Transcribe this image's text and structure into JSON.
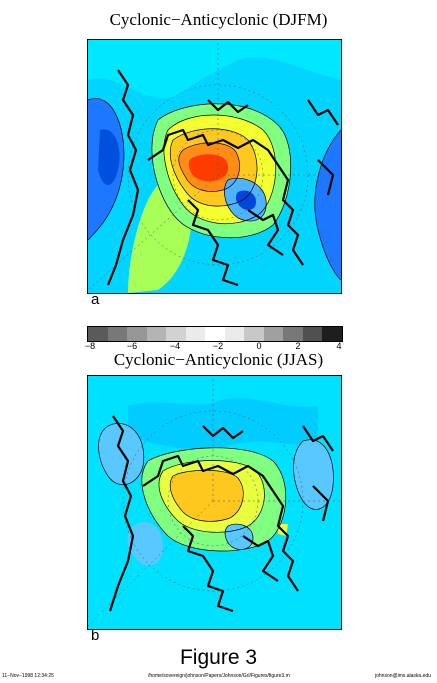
{
  "panel_a": {
    "title": "Cyclonic−Anticyclonic (DJFM)",
    "label": "a"
  },
  "colorbar": {
    "ticks": [
      "−8",
      "−6",
      "−4",
      "−2",
      "0",
      "2",
      "4"
    ],
    "colors": [
      "#5a5a5a",
      "#787878",
      "#969696",
      "#b4b4b4",
      "#d2d2d2",
      "#ebebeb",
      "#ffffff",
      "#ebebeb",
      "#c8c8c8",
      "#a0a0a0",
      "#787878",
      "#505050",
      "#1e1e1e"
    ]
  },
  "panel_b": {
    "title": "Cyclonic−Anticyclonic (JJAS)",
    "label": "b"
  },
  "figure": {
    "caption": "Figure 3"
  },
  "footer": {
    "date": "11−Nov−1998 12:34:25",
    "path": "/home/sovereign/johnson/Papers/Johnson/Grl/Figures/figure3.m",
    "email": "johnson@ims.alaska.edu"
  }
}
